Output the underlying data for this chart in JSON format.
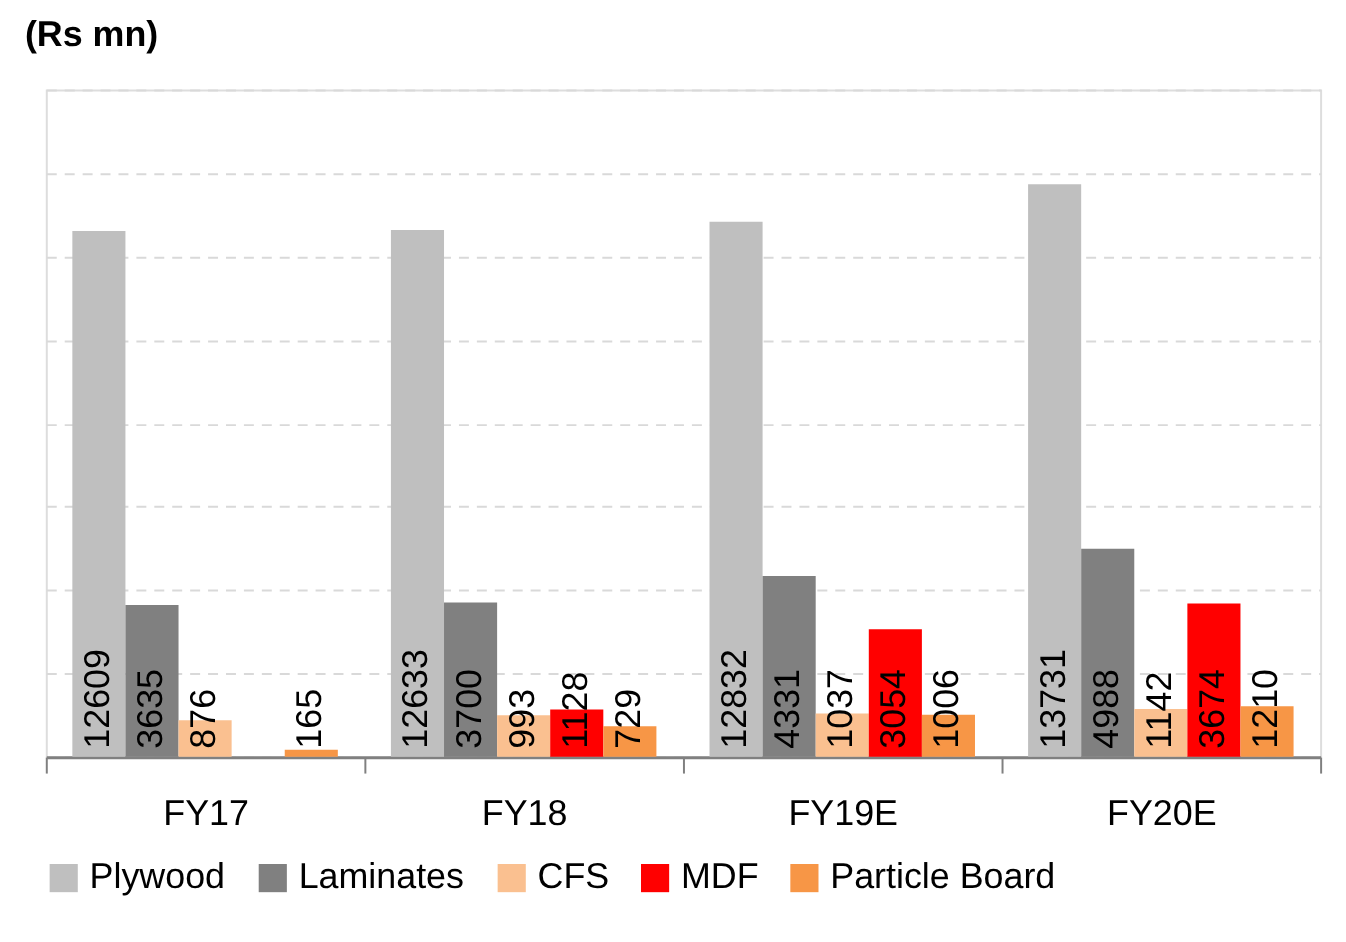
{
  "chart_data": {
    "type": "bar",
    "ylabel": "(Rs mn)",
    "categories": [
      "FY17",
      "FY18",
      "FY19E",
      "FY20E"
    ],
    "series": [
      {
        "name": "Plywood",
        "color": "#bfbfbf",
        "values": [
          12609,
          12633,
          12832,
          13731
        ]
      },
      {
        "name": "Laminates",
        "color": "#808080",
        "values": [
          3635,
          3700,
          4331,
          4988
        ]
      },
      {
        "name": "CFS",
        "color": "#fac090",
        "values": [
          876,
          993,
          1037,
          1142
        ]
      },
      {
        "name": "MDF",
        "color": "#ff0000",
        "values": [
          null,
          1128,
          3054,
          3674
        ]
      },
      {
        "name": "Particle Board",
        "color": "#f79646",
        "values": [
          165,
          729,
          1006,
          1210
        ]
      }
    ],
    "ylim": [
      0,
      16000
    ],
    "yticks": [
      {
        "value": 0,
        "label": null
      },
      {
        "value": 2000,
        "label": null
      },
      {
        "value": 4000,
        "label": null
      },
      {
        "value": 6000,
        "label": null
      },
      {
        "value": 8000,
        "label": null
      },
      {
        "value": 10000,
        "label": null
      },
      {
        "value": 12000,
        "label": null
      },
      {
        "value": 14000,
        "label": null
      },
      {
        "value": 16000,
        "label": null
      }
    ],
    "grid": "y",
    "legend": "bottom",
    "data_labels": true
  }
}
